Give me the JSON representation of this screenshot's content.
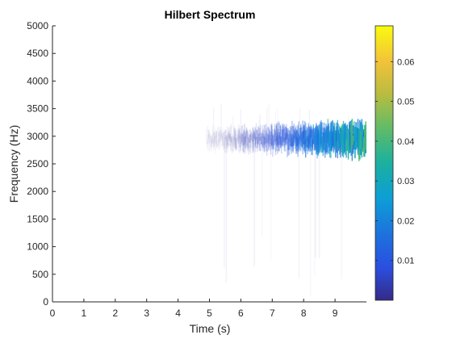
{
  "chart_data": {
    "type": "heatmap",
    "title": "Hilbert Spectrum",
    "xlabel": "Time (s)",
    "ylabel": "Frequency (Hz)",
    "xlim": [
      0,
      10
    ],
    "ylim": [
      0,
      5000
    ],
    "x_ticks": [
      "0",
      "1",
      "2",
      "3",
      "4",
      "5",
      "6",
      "7",
      "8",
      "9"
    ],
    "y_ticks": [
      "0",
      "500",
      "1000",
      "1500",
      "2000",
      "2500",
      "3000",
      "3500",
      "4000",
      "4500",
      "5000"
    ],
    "colorbar": {
      "limits": [
        0,
        0.069
      ],
      "ticks": [
        "0.01",
        "0.02",
        "0.03",
        "0.04",
        "0.05",
        "0.06"
      ],
      "colormap": "parula"
    },
    "intensity_profile": {
      "description_free": true,
      "band_center_hz": 2950,
      "band_halfwidth_hz": 250,
      "onset_time_s": 4.9,
      "end_time_s": 10,
      "peak_value": 0.04,
      "peak_time_s": 9.7
    },
    "grid": false
  },
  "colors": {
    "axis": "#262626",
    "background": "#ffffff"
  }
}
